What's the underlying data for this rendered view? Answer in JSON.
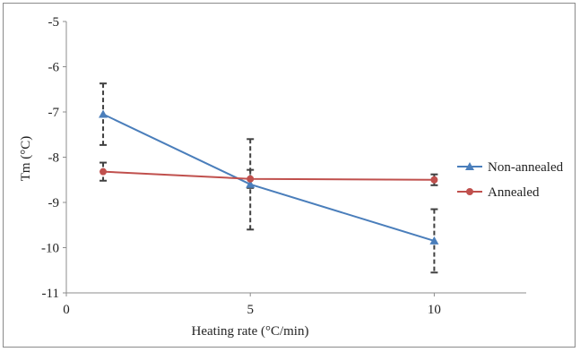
{
  "chart_data": {
    "type": "line",
    "x": [
      1,
      5,
      10
    ],
    "xlabel": "Heating rate (°C/min)",
    "ylabel": "Tm (°C)",
    "xlim": [
      0,
      12.5
    ],
    "ylim": [
      -11,
      -5
    ],
    "xticks": [
      0,
      5,
      10
    ],
    "yticks": [
      -11,
      -10,
      -9,
      -8,
      -7,
      -6,
      -5
    ],
    "grid": false,
    "legend_position": "right",
    "series": [
      {
        "name": "Non-annealed",
        "color": "#4a7ebb",
        "marker": "triangle",
        "y": [
          -7.05,
          -8.6,
          -9.85
        ],
        "error": [
          0.68,
          1.0,
          0.7
        ]
      },
      {
        "name": "Annealed",
        "color": "#c0504d",
        "marker": "circle",
        "y": [
          -8.32,
          -8.48,
          -8.5
        ],
        "error": [
          0.2,
          0.2,
          0.12
        ]
      }
    ]
  }
}
